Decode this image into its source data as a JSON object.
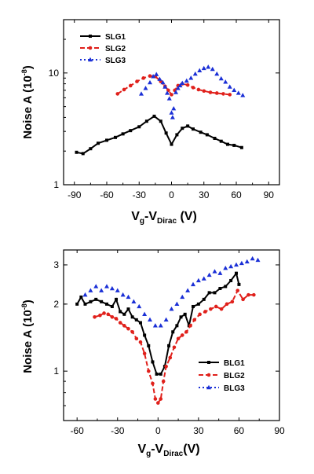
{
  "chart_data": [
    {
      "type": "line",
      "scale_y": "log",
      "ylim": [
        1,
        30
      ],
      "xlim": [
        -100,
        100
      ],
      "x_ticks": [
        -90,
        -60,
        -30,
        0,
        30,
        60,
        90
      ],
      "y_ticks": [
        1,
        10
      ],
      "y_tick_labels": [
        "1",
        "10"
      ],
      "xlabel": {
        "main": "V",
        "sub1": "g",
        "mid": "-V",
        "sub2": "Dirac",
        "tail": " (V)"
      },
      "ylabel": {
        "main": "Noise A (10",
        "sup": "-8",
        "tail": ")"
      },
      "legend_position": "top-left",
      "series": [
        {
          "name": "SLG1",
          "color": "#000000",
          "marker": "square",
          "dash": "solid",
          "x": [
            -88,
            -82,
            -75,
            -68,
            -60,
            -52,
            -45,
            -38,
            -30,
            -23,
            -16,
            -10,
            -5,
            0,
            5,
            10,
            15,
            20,
            27,
            33,
            40,
            46,
            52,
            58,
            65
          ],
          "y": [
            1.95,
            1.9,
            2.1,
            2.35,
            2.5,
            2.65,
            2.85,
            3.05,
            3.3,
            3.7,
            4.1,
            3.7,
            2.9,
            2.3,
            2.8,
            3.2,
            3.35,
            3.15,
            2.95,
            2.8,
            2.6,
            2.45,
            2.3,
            2.25,
            2.15
          ]
        },
        {
          "name": "SLG2",
          "color": "#e0201b",
          "marker": "circle",
          "dash": "dashed",
          "x": [
            -50,
            -44,
            -38,
            -32,
            -26,
            -20,
            -15,
            -10,
            -6,
            -3,
            0,
            3,
            6,
            10,
            15,
            20,
            25,
            30,
            36,
            42,
            48,
            54
          ],
          "y": [
            6.5,
            7.1,
            7.7,
            8.4,
            9.0,
            9.4,
            9.3,
            8.4,
            7.6,
            7.0,
            6.4,
            7.0,
            7.7,
            8.0,
            7.8,
            7.4,
            7.1,
            6.9,
            6.7,
            6.6,
            6.5,
            6.4
          ]
        },
        {
          "name": "SLG3",
          "color": "#1a2fd6",
          "marker": "triangle",
          "dash": "dotted",
          "x": [
            -28,
            -24,
            -20,
            -17,
            -14,
            -11,
            -8,
            -6,
            -4,
            -2,
            0,
            1,
            2,
            4,
            6,
            8,
            10,
            14,
            18,
            22,
            26,
            30,
            34,
            38,
            42,
            46,
            50,
            54,
            58,
            62,
            66
          ],
          "y": [
            6.5,
            7.3,
            8.2,
            9.3,
            9.7,
            8.8,
            8.2,
            7.5,
            6.6,
            5.9,
            4.4,
            4.0,
            4.8,
            6.7,
            7.3,
            7.7,
            8.1,
            8.5,
            9.0,
            9.8,
            10.5,
            11.0,
            11.3,
            10.8,
            9.8,
            8.9,
            8.3,
            7.5,
            7.0,
            6.6,
            6.3
          ]
        }
      ]
    },
    {
      "type": "line",
      "scale_y": "log",
      "ylim": [
        0.6,
        3.5
      ],
      "xlim": [
        -70,
        90
      ],
      "x_ticks": [
        -60,
        -30,
        0,
        30,
        60,
        90
      ],
      "y_ticks": [
        1,
        2,
        3
      ],
      "y_tick_labels": [
        "1",
        "2",
        "3"
      ],
      "xlabel": {
        "main": "V",
        "sub1": "g",
        "mid": "-V",
        "sub2": "Dirac",
        "tail": "(V)"
      },
      "ylabel": {
        "main": "Noise A (10",
        "sup": "-8",
        "tail": ")"
      },
      "legend_position": "bottom-right",
      "series": [
        {
          "name": "BLG1",
          "color": "#000000",
          "marker": "square",
          "dash": "solid",
          "x": [
            -60,
            -57,
            -54,
            -50,
            -46,
            -42,
            -38,
            -34,
            -31,
            -28,
            -25,
            -22,
            -19,
            -16,
            -13,
            -10,
            -7,
            -4,
            -1,
            2,
            5,
            8,
            11,
            14,
            17,
            20,
            23,
            26,
            30,
            34,
            38,
            42,
            46,
            50,
            54,
            58,
            60
          ],
          "y": [
            2.0,
            2.15,
            2.0,
            2.05,
            2.1,
            2.05,
            2.0,
            1.95,
            2.1,
            1.85,
            1.8,
            1.9,
            1.75,
            1.7,
            1.65,
            1.45,
            1.3,
            1.1,
            0.97,
            0.97,
            1.05,
            1.3,
            1.5,
            1.6,
            1.75,
            1.8,
            1.6,
            1.95,
            2.0,
            2.1,
            2.25,
            2.25,
            2.35,
            2.4,
            2.55,
            2.75,
            2.45
          ]
        },
        {
          "name": "BLG2",
          "color": "#e0201b",
          "marker": "circle",
          "dash": "dashed",
          "x": [
            -47,
            -43,
            -40,
            -37,
            -34,
            -31,
            -28,
            -25,
            -22,
            -19,
            -16,
            -13,
            -10,
            -7,
            -4,
            -2,
            0,
            2,
            4,
            6,
            9,
            12,
            15,
            18,
            21,
            24,
            27,
            31,
            35,
            39,
            43,
            47,
            51,
            55,
            59,
            63,
            67,
            71
          ],
          "y": [
            1.75,
            1.78,
            1.82,
            1.8,
            1.75,
            1.72,
            1.65,
            1.6,
            1.55,
            1.5,
            1.4,
            1.35,
            1.2,
            1.0,
            0.88,
            0.75,
            0.72,
            0.75,
            0.9,
            1.05,
            1.15,
            1.28,
            1.4,
            1.45,
            1.5,
            1.6,
            1.7,
            1.8,
            1.85,
            1.9,
            1.95,
            1.9,
            2.0,
            2.05,
            2.3,
            2.1,
            2.2,
            2.2
          ]
        },
        {
          "name": "BLG3",
          "color": "#1a2fd6",
          "marker": "triangle",
          "dash": "dotted",
          "x": [
            -54,
            -50,
            -46,
            -42,
            -38,
            -34,
            -30,
            -26,
            -22,
            -18,
            -14,
            -10,
            -6,
            -2,
            2,
            6,
            10,
            14,
            18,
            22,
            26,
            30,
            34,
            38,
            42,
            46,
            50,
            54,
            58,
            62,
            66,
            70,
            74
          ],
          "y": [
            2.2,
            2.3,
            2.4,
            2.3,
            2.4,
            2.35,
            2.3,
            2.2,
            2.15,
            2.05,
            1.95,
            1.8,
            1.7,
            1.6,
            1.6,
            1.7,
            1.9,
            2.0,
            2.15,
            2.3,
            2.45,
            2.55,
            2.6,
            2.7,
            2.8,
            2.75,
            2.9,
            2.95,
            3.0,
            3.05,
            3.1,
            3.2,
            3.15
          ]
        }
      ]
    }
  ]
}
